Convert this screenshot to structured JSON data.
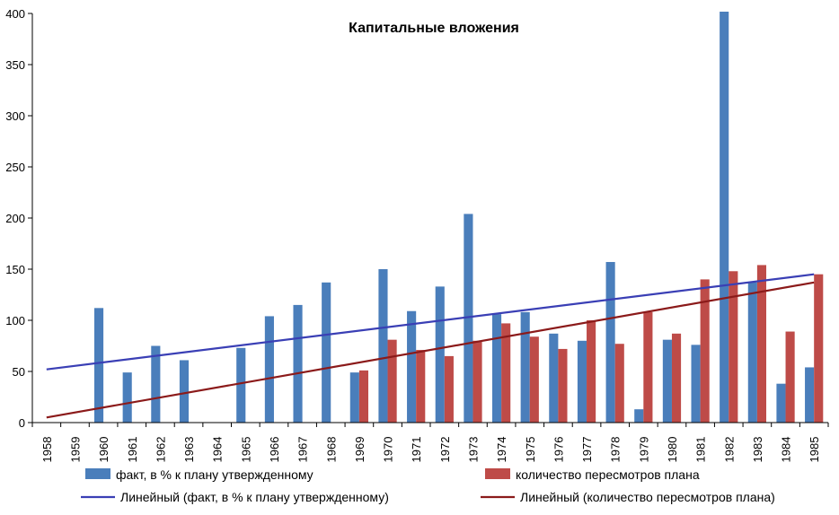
{
  "chart_data": {
    "type": "bar",
    "title": "Капитальные вложения",
    "xlabel": "",
    "ylabel": "",
    "ylim": [
      0,
      400
    ],
    "yticks": [
      0,
      50,
      100,
      150,
      200,
      250,
      300,
      350,
      400
    ],
    "grid": false,
    "legend_position": "bottom",
    "categories": [
      "1958",
      "1959",
      "1960",
      "1961",
      "1962",
      "1963",
      "1964",
      "1965",
      "1966",
      "1967",
      "1968",
      "1969",
      "1970",
      "1971",
      "1972",
      "1973",
      "1974",
      "1975",
      "1976",
      "1977",
      "1978",
      "1979",
      "1980",
      "1981",
      "1982",
      "1983",
      "1984",
      "1985"
    ],
    "series": [
      {
        "name": "факт, в % к плану утвержденному",
        "color": "#4a7ebb",
        "values": [
          null,
          null,
          112,
          49,
          75,
          61,
          null,
          73,
          104,
          115,
          137,
          49,
          150,
          109,
          133,
          204,
          106,
          108,
          87,
          80,
          157,
          13,
          81,
          76,
          402,
          137,
          38,
          54
        ]
      },
      {
        "name": "количество пересмотров плана",
        "color": "#be4b48",
        "values": [
          null,
          null,
          null,
          null,
          null,
          null,
          null,
          null,
          null,
          null,
          null,
          51,
          81,
          71,
          65,
          80,
          97,
          84,
          72,
          100,
          77,
          108,
          87,
          140,
          148,
          154,
          89,
          145
        ]
      }
    ],
    "trendlines": [
      {
        "name": "Линейный (факт, в % к плану утвержденному)",
        "color": "#3a3fb5",
        "start": 52,
        "end": 145
      },
      {
        "name": "Линейный (количество пересмотров плана)",
        "color": "#8b1a1a",
        "start": 5,
        "end": 137
      }
    ]
  }
}
